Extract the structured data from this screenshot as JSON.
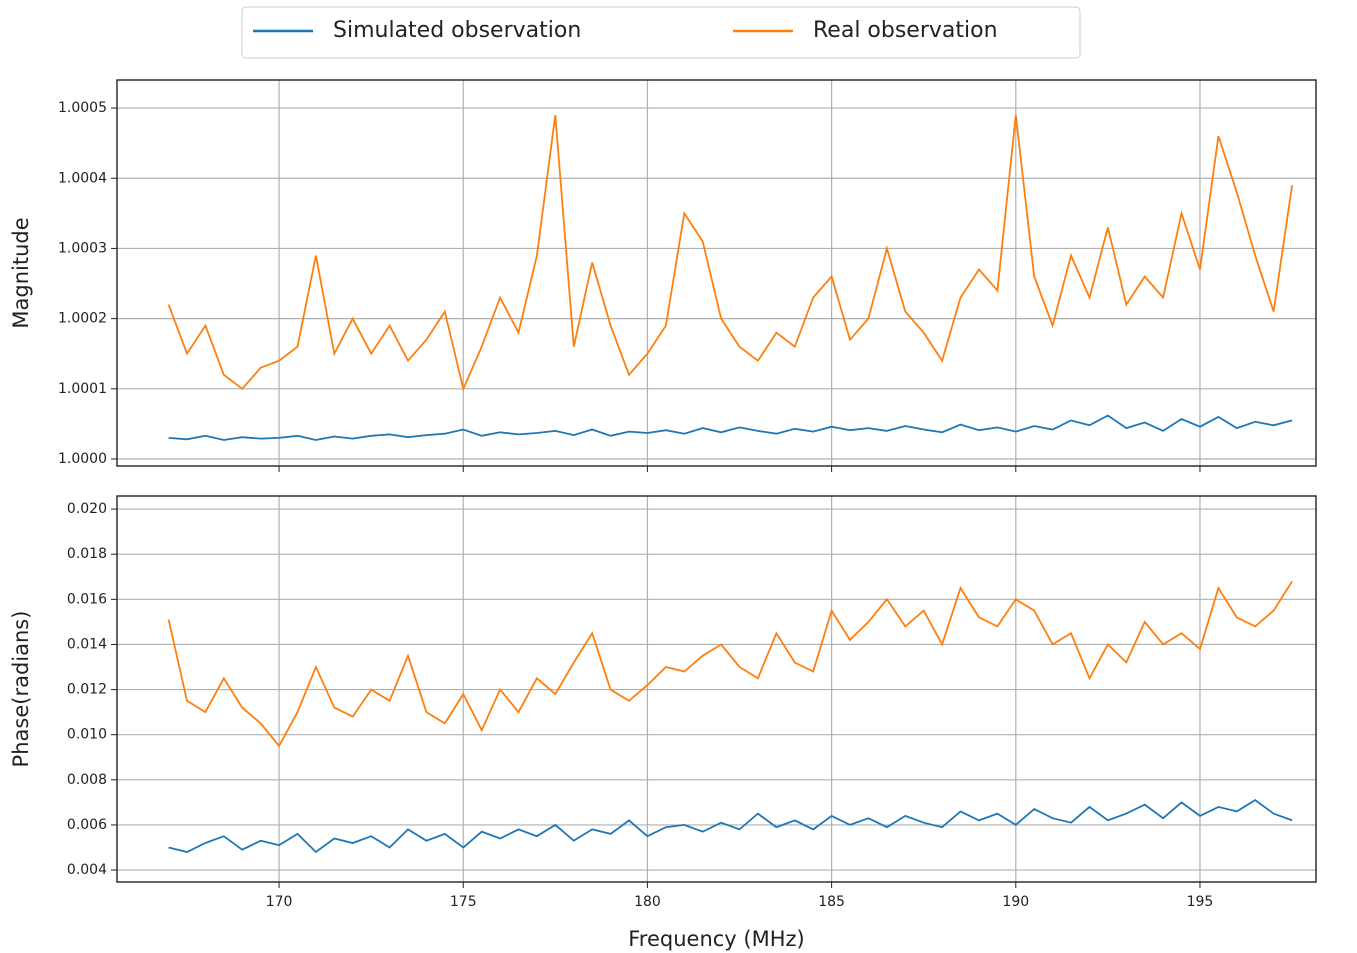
{
  "chart_data": [
    {
      "type": "line",
      "ylabel": "Magnitude",
      "legend": "upper center",
      "grid": true,
      "x": [
        167,
        167.5,
        168,
        168.5,
        169,
        169.5,
        170,
        170.5,
        171,
        171.5,
        172,
        172.5,
        173,
        173.5,
        174,
        174.5,
        175,
        175.5,
        176,
        176.5,
        177,
        177.5,
        178,
        178.5,
        179,
        179.5,
        180,
        180.5,
        181,
        181.5,
        182,
        182.5,
        183,
        183.5,
        184,
        184.5,
        185,
        185.5,
        186,
        186.5,
        187,
        187.5,
        188,
        188.5,
        189,
        189.5,
        190,
        190.5,
        191,
        191.5,
        192,
        192.5,
        193,
        193.5,
        194,
        194.5,
        195,
        195.5,
        196,
        196.5,
        197,
        197.5
      ],
      "xlim": [
        165.6,
        198.15
      ],
      "xticks": [
        170,
        175,
        180,
        185,
        190,
        195
      ],
      "ylim": [
        0.99999,
        1.00054
      ],
      "yticks": [
        {
          "value": 1.0,
          "label": "1.0000"
        },
        1.0001,
        1.0002,
        1.0003,
        1.0004,
        1.0005
      ],
      "series": [
        {
          "name": "Simulated observation",
          "color": "#1f77b4",
          "values": [
            1.00003,
            1.000028,
            1.000033,
            1.000027,
            1.000031,
            1.000029,
            1.00003,
            1.000033,
            1.000027,
            1.000032,
            1.000029,
            1.000033,
            1.000035,
            1.000031,
            1.000034,
            1.000036,
            1.000042,
            1.000033,
            1.000038,
            1.000035,
            1.000037,
            1.00004,
            1.000034,
            1.000042,
            1.000033,
            1.000039,
            1.000037,
            1.000041,
            1.000036,
            1.000044,
            1.000038,
            1.000045,
            1.00004,
            1.000036,
            1.000043,
            1.000039,
            1.000046,
            1.000041,
            1.000044,
            1.00004,
            1.000047,
            1.000042,
            1.000038,
            1.000049,
            1.000041,
            1.000045,
            1.000039,
            1.000047,
            1.000042,
            1.000055,
            1.000048,
            1.000062,
            1.000044,
            1.000052,
            1.00004,
            1.000057,
            1.000046,
            1.00006,
            1.000044,
            1.000053,
            1.000048,
            1.000055
          ]
        },
        {
          "name": "Real observation",
          "color": "#ff7f0e",
          "values": [
            1.00022,
            1.00015,
            1.00019,
            1.00012,
            1.0001,
            1.00013,
            1.00014,
            1.00016,
            1.00029,
            1.00015,
            1.0002,
            1.00015,
            1.00019,
            1.00014,
            1.00017,
            1.00021,
            1.0001,
            1.00016,
            1.00023,
            1.00018,
            1.00029,
            1.00049,
            1.00016,
            1.00028,
            1.00019,
            1.00012,
            1.00015,
            1.00019,
            1.00035,
            1.00031,
            1.0002,
            1.00016,
            1.00014,
            1.00018,
            1.00016,
            1.00023,
            1.00026,
            1.00017,
            1.0002,
            1.0003,
            1.00021,
            1.00018,
            1.00014,
            1.00023,
            1.00027,
            1.00024,
            1.00049,
            1.00026,
            1.00019,
            1.00029,
            1.00023,
            1.00033,
            1.00022,
            1.00026,
            1.00023,
            1.00035,
            1.00027,
            1.00046,
            1.00038,
            1.00029,
            1.00021,
            1.00039
          ]
        }
      ]
    },
    {
      "type": "line",
      "ylabel": "Phase(radians)",
      "xlabel": "Frequency (MHz)",
      "grid": true,
      "x": [
        167,
        167.5,
        168,
        168.5,
        169,
        169.5,
        170,
        170.5,
        171,
        171.5,
        172,
        172.5,
        173,
        173.5,
        174,
        174.5,
        175,
        175.5,
        176,
        176.5,
        177,
        177.5,
        178,
        178.5,
        179,
        179.5,
        180,
        180.5,
        181,
        181.5,
        182,
        182.5,
        183,
        183.5,
        184,
        184.5,
        185,
        185.5,
        186,
        186.5,
        187,
        187.5,
        188,
        188.5,
        189,
        189.5,
        190,
        190.5,
        191,
        191.5,
        192,
        192.5,
        193,
        193.5,
        194,
        194.5,
        195,
        195.5,
        196,
        196.5,
        197,
        197.5
      ],
      "xlim": [
        165.6,
        198.15
      ],
      "xticks": [
        170,
        175,
        180,
        185,
        190,
        195
      ],
      "ylim": [
        0.00347,
        0.02058
      ],
      "yticks": [
        0.004,
        0.006,
        0.008,
        {
          "value": 0.01,
          "label": "0.010"
        },
        0.012,
        0.014,
        0.016,
        0.018,
        {
          "value": 0.02,
          "label": "0.020"
        }
      ],
      "series": [
        {
          "color": "#1f77b4",
          "values": [
            0.005,
            0.0048,
            0.0052,
            0.0055,
            0.0049,
            0.0053,
            0.0051,
            0.0056,
            0.0048,
            0.0054,
            0.0052,
            0.0055,
            0.005,
            0.0058,
            0.0053,
            0.0056,
            0.005,
            0.0057,
            0.0054,
            0.0058,
            0.0055,
            0.006,
            0.0053,
            0.0058,
            0.0056,
            0.0062,
            0.0055,
            0.0059,
            0.006,
            0.0057,
            0.0061,
            0.0058,
            0.0065,
            0.0059,
            0.0062,
            0.0058,
            0.0064,
            0.006,
            0.0063,
            0.0059,
            0.0064,
            0.0061,
            0.0059,
            0.0066,
            0.0062,
            0.0065,
            0.006,
            0.0067,
            0.0063,
            0.0061,
            0.0068,
            0.0062,
            0.0065,
            0.0069,
            0.0063,
            0.007,
            0.0064,
            0.0068,
            0.0066,
            0.0071,
            0.0065,
            0.0062
          ]
        },
        {
          "color": "#ff7f0e",
          "values": [
            0.0151,
            0.0115,
            0.011,
            0.0125,
            0.0112,
            0.0105,
            0.0095,
            0.011,
            0.013,
            0.0112,
            0.0108,
            0.012,
            0.0115,
            0.0135,
            0.011,
            0.0105,
            0.0118,
            0.0102,
            0.012,
            0.011,
            0.0125,
            0.0118,
            0.0132,
            0.0145,
            0.012,
            0.0115,
            0.0122,
            0.013,
            0.0128,
            0.0135,
            0.014,
            0.013,
            0.0125,
            0.0145,
            0.0132,
            0.0128,
            0.0155,
            0.0142,
            0.015,
            0.016,
            0.0148,
            0.0155,
            0.014,
            0.0165,
            0.0152,
            0.0148,
            0.016,
            0.0155,
            0.014,
            0.0145,
            0.0125,
            0.014,
            0.0132,
            0.015,
            0.014,
            0.0145,
            0.0138,
            0.0165,
            0.0152,
            0.0148,
            0.0155,
            0.0168
          ]
        }
      ]
    }
  ]
}
